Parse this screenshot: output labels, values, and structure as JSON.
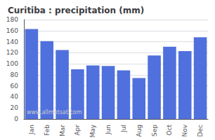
{
  "chart_data": {
    "type": "bar",
    "title": "Curitiba : precipitation (mm)",
    "categories": [
      "Jan",
      "Feb",
      "Mar",
      "Apr",
      "May",
      "Jun",
      "Jul",
      "Aug",
      "Sep",
      "Oct",
      "Nov",
      "Dec"
    ],
    "values": [
      163,
      141,
      125,
      90,
      97,
      96,
      88,
      74,
      115,
      131,
      123,
      148
    ],
    "ylim": [
      0,
      180
    ],
    "yticks": [
      0,
      20,
      40,
      60,
      80,
      100,
      120,
      140,
      160,
      180
    ],
    "grid": true,
    "annotations": [
      "www.allmetsat.com"
    ]
  }
}
